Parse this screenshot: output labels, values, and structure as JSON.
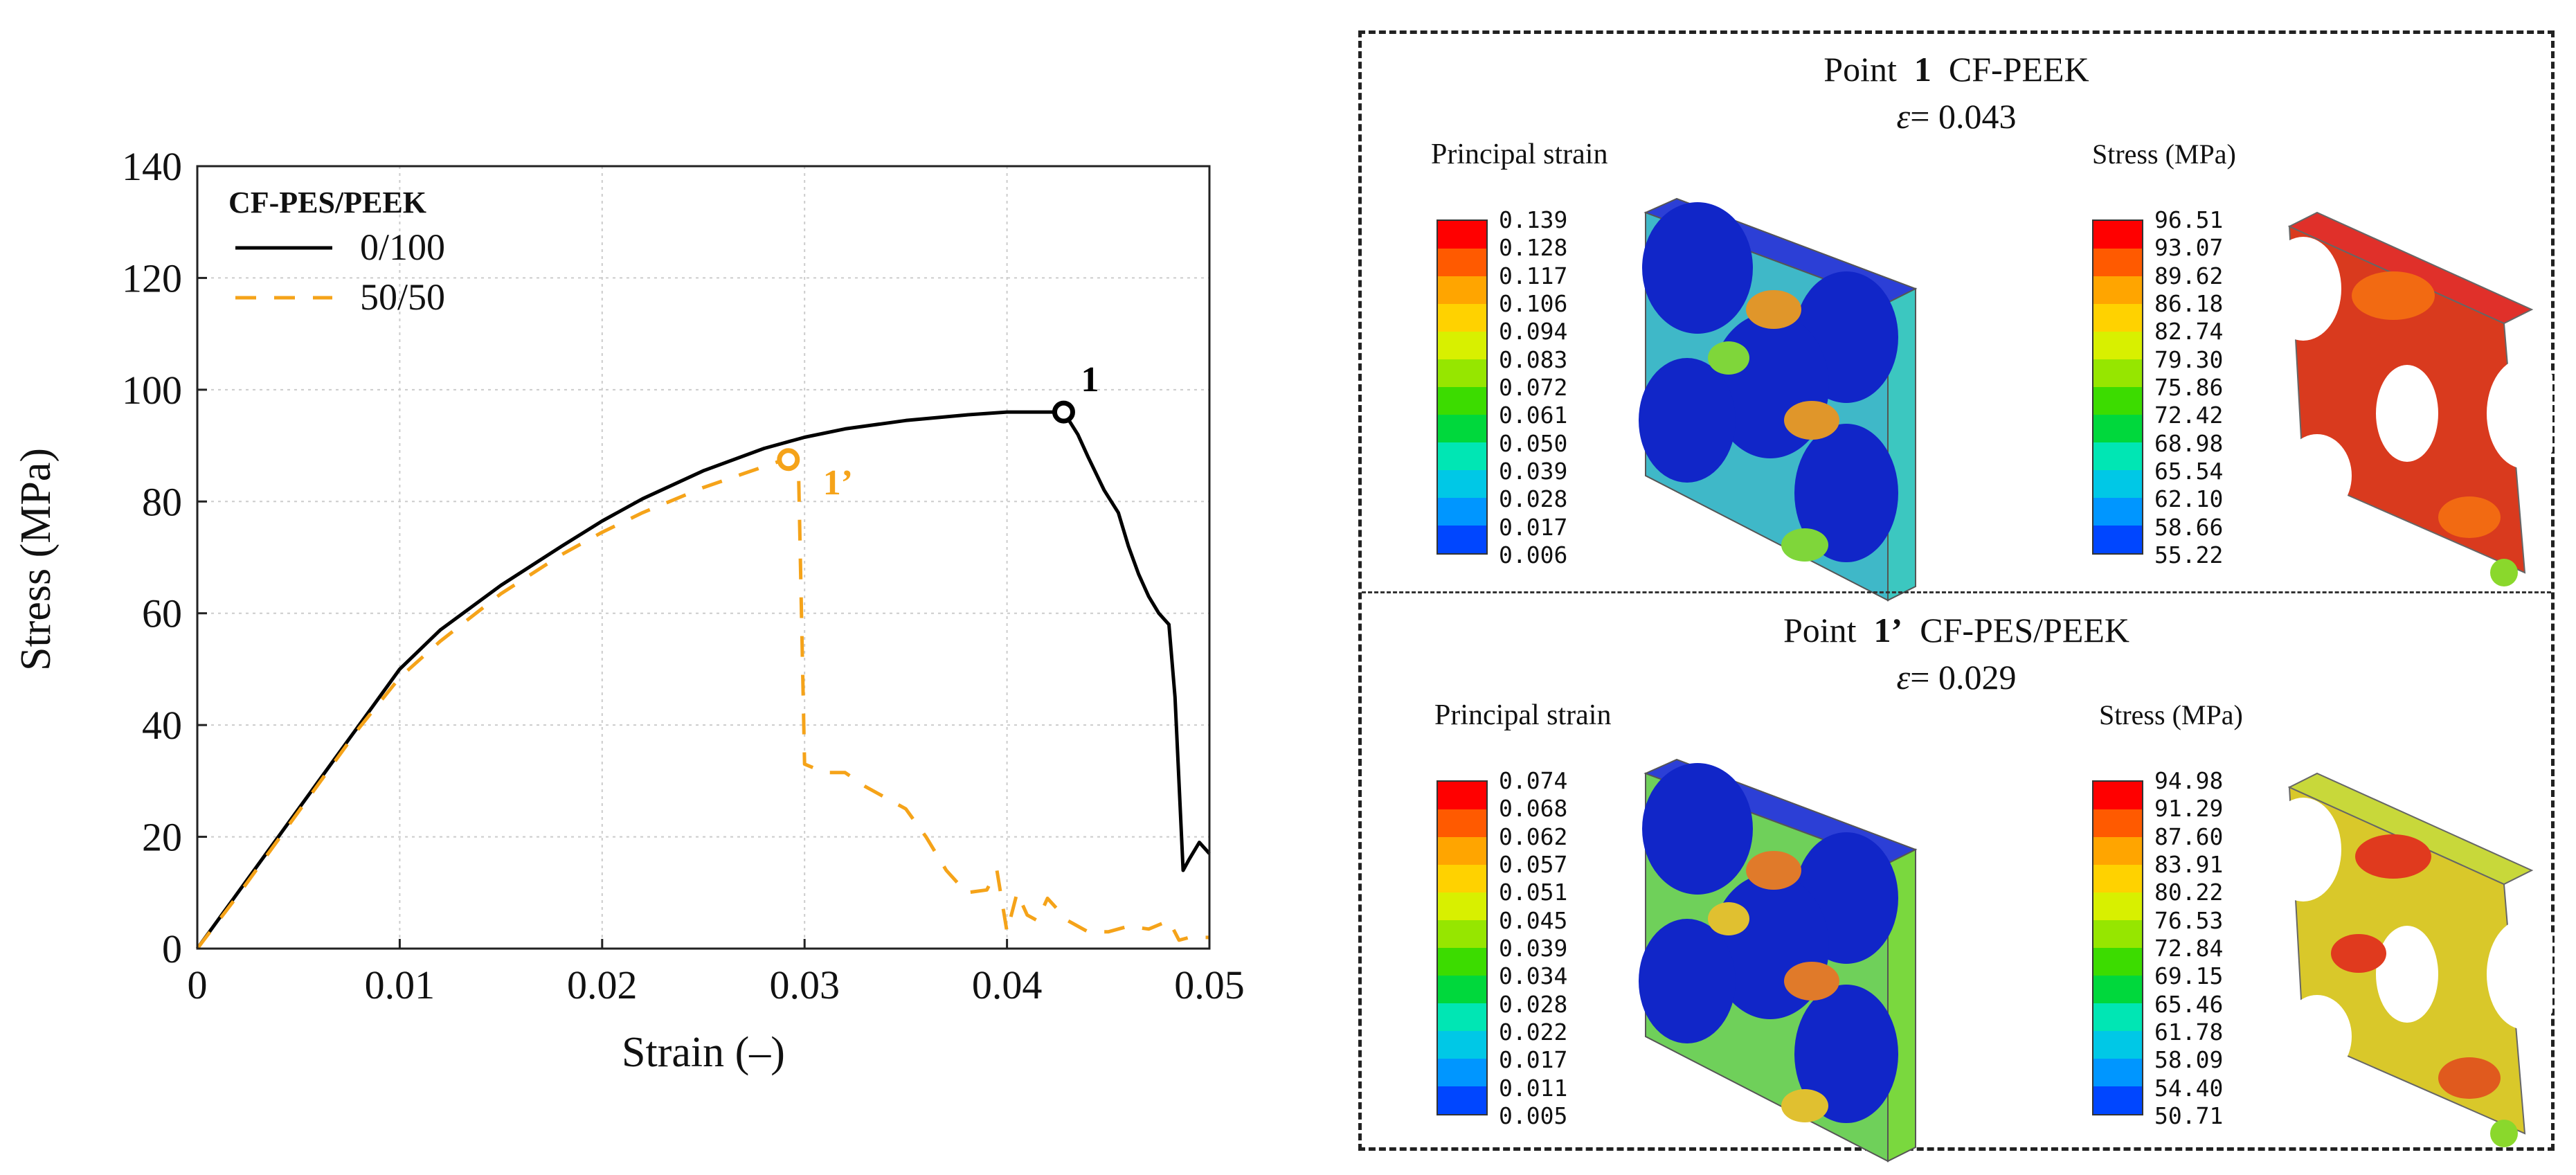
{
  "chart_data": {
    "type": "line",
    "title": "",
    "xlabel": "Strain (–)",
    "ylabel": "Stress (MPa)",
    "xlim": [
      0,
      0.05
    ],
    "ylim": [
      0,
      140
    ],
    "xticks": [
      0,
      0.01,
      0.02,
      0.03,
      0.04,
      0.05
    ],
    "xtick_labels": [
      "0",
      "0.01",
      "0.02",
      "0.03",
      "0.04",
      "0.05"
    ],
    "yticks": [
      0,
      20,
      40,
      60,
      80,
      100,
      120,
      140
    ],
    "ytick_labels": [
      "0",
      "20",
      "40",
      "60",
      "80",
      "100",
      "120",
      "140"
    ],
    "grid": true,
    "legend": {
      "title": "CF-PES/PEEK",
      "position": "top-left",
      "entries": [
        "0/100",
        "50/50"
      ]
    },
    "series": [
      {
        "name": "0/100",
        "color": "#000000",
        "style": "solid",
        "x": [
          0,
          0.002,
          0.004,
          0.006,
          0.008,
          0.01,
          0.012,
          0.015,
          0.018,
          0.02,
          0.022,
          0.025,
          0.028,
          0.03,
          0.032,
          0.035,
          0.038,
          0.04,
          0.042,
          0.0428,
          0.0435,
          0.044,
          0.0448,
          0.0455,
          0.046,
          0.0465,
          0.047,
          0.0475,
          0.048,
          0.0483,
          0.0487,
          0.049,
          0.0495,
          0.05
        ],
        "y": [
          0,
          10,
          20,
          30,
          40,
          50,
          57,
          65,
          72,
          76.5,
          80.5,
          85.5,
          89.5,
          91.5,
          93,
          94.5,
          95.5,
          96,
          96,
          96,
          92,
          88,
          82,
          78,
          72,
          67,
          63,
          60,
          58,
          45,
          14,
          16,
          19,
          17
        ]
      },
      {
        "name": "50/50",
        "color": "#f5a319",
        "style": "dashed",
        "x": [
          0,
          0.002,
          0.004,
          0.006,
          0.008,
          0.01,
          0.012,
          0.015,
          0.018,
          0.02,
          0.022,
          0.025,
          0.027,
          0.029,
          0.0293,
          0.0297,
          0.03,
          0.031,
          0.032,
          0.033,
          0.034,
          0.035,
          0.036,
          0.037,
          0.038,
          0.039,
          0.0395,
          0.04,
          0.0405,
          0.041,
          0.0415,
          0.042,
          0.043,
          0.044,
          0.045,
          0.046,
          0.047,
          0.048,
          0.0485,
          0.049,
          0.05
        ],
        "y": [
          0,
          9.5,
          19.5,
          29.5,
          39.5,
          48.5,
          55,
          63.5,
          70.5,
          74.5,
          78,
          82.5,
          85,
          87.5,
          87,
          86,
          33,
          31.5,
          31.5,
          29,
          27,
          25,
          20,
          14,
          10,
          10.5,
          14,
          3,
          10,
          6,
          5,
          9,
          5,
          3,
          3,
          4,
          3.5,
          5,
          1.5,
          2,
          2
        ]
      }
    ],
    "annotations": [
      {
        "label": "1",
        "x": 0.0428,
        "y": 96,
        "color": "#000000"
      },
      {
        "label": "1’",
        "x": 0.0292,
        "y": 87.5,
        "color": "#f5a319"
      }
    ]
  },
  "panel": {
    "top": {
      "title_prefix": "Point",
      "point_label": "1",
      "material": "CF-PEEK",
      "epsilon_symbol": "ε",
      "epsilon_value": "= 0.043",
      "strain_legend": {
        "title": "Principal strain",
        "ticks": [
          "0.139",
          "0.128",
          "0.117",
          "0.106",
          "0.094",
          "0.083",
          "0.072",
          "0.061",
          "0.050",
          "0.039",
          "0.028",
          "0.017",
          "0.006"
        ]
      },
      "stress_legend": {
        "title": "Stress (MPa)",
        "ticks": [
          "96.51",
          "93.07",
          "89.62",
          "86.18",
          "82.74",
          "79.30",
          "75.86",
          "72.42",
          "68.98",
          "65.54",
          "62.10",
          "58.66",
          "55.22"
        ]
      }
    },
    "bottom": {
      "title_prefix": "Point",
      "point_label": "1’",
      "material": "CF-PES/PEEK",
      "epsilon_symbol": "ε",
      "epsilon_value": "= 0.029",
      "strain_legend": {
        "title": "Principal strain",
        "ticks": [
          "0.074",
          "0.068",
          "0.062",
          "0.057",
          "0.051",
          "0.045",
          "0.039",
          "0.034",
          "0.028",
          "0.022",
          "0.017",
          "0.011",
          "0.005"
        ]
      },
      "stress_legend": {
        "title": "Stress (MPa)",
        "ticks": [
          "94.98",
          "91.29",
          "87.60",
          "83.91",
          "80.22",
          "76.53",
          "72.84",
          "69.15",
          "65.46",
          "61.78",
          "58.09",
          "54.40",
          "50.71"
        ]
      }
    },
    "colormap": [
      "#ff0000",
      "#ff5a00",
      "#ffa500",
      "#ffd200",
      "#d8f000",
      "#96e600",
      "#3cdc00",
      "#00d83c",
      "#00e6b4",
      "#00c8e6",
      "#0096ff",
      "#0046ff",
      "#0000ff"
    ]
  }
}
